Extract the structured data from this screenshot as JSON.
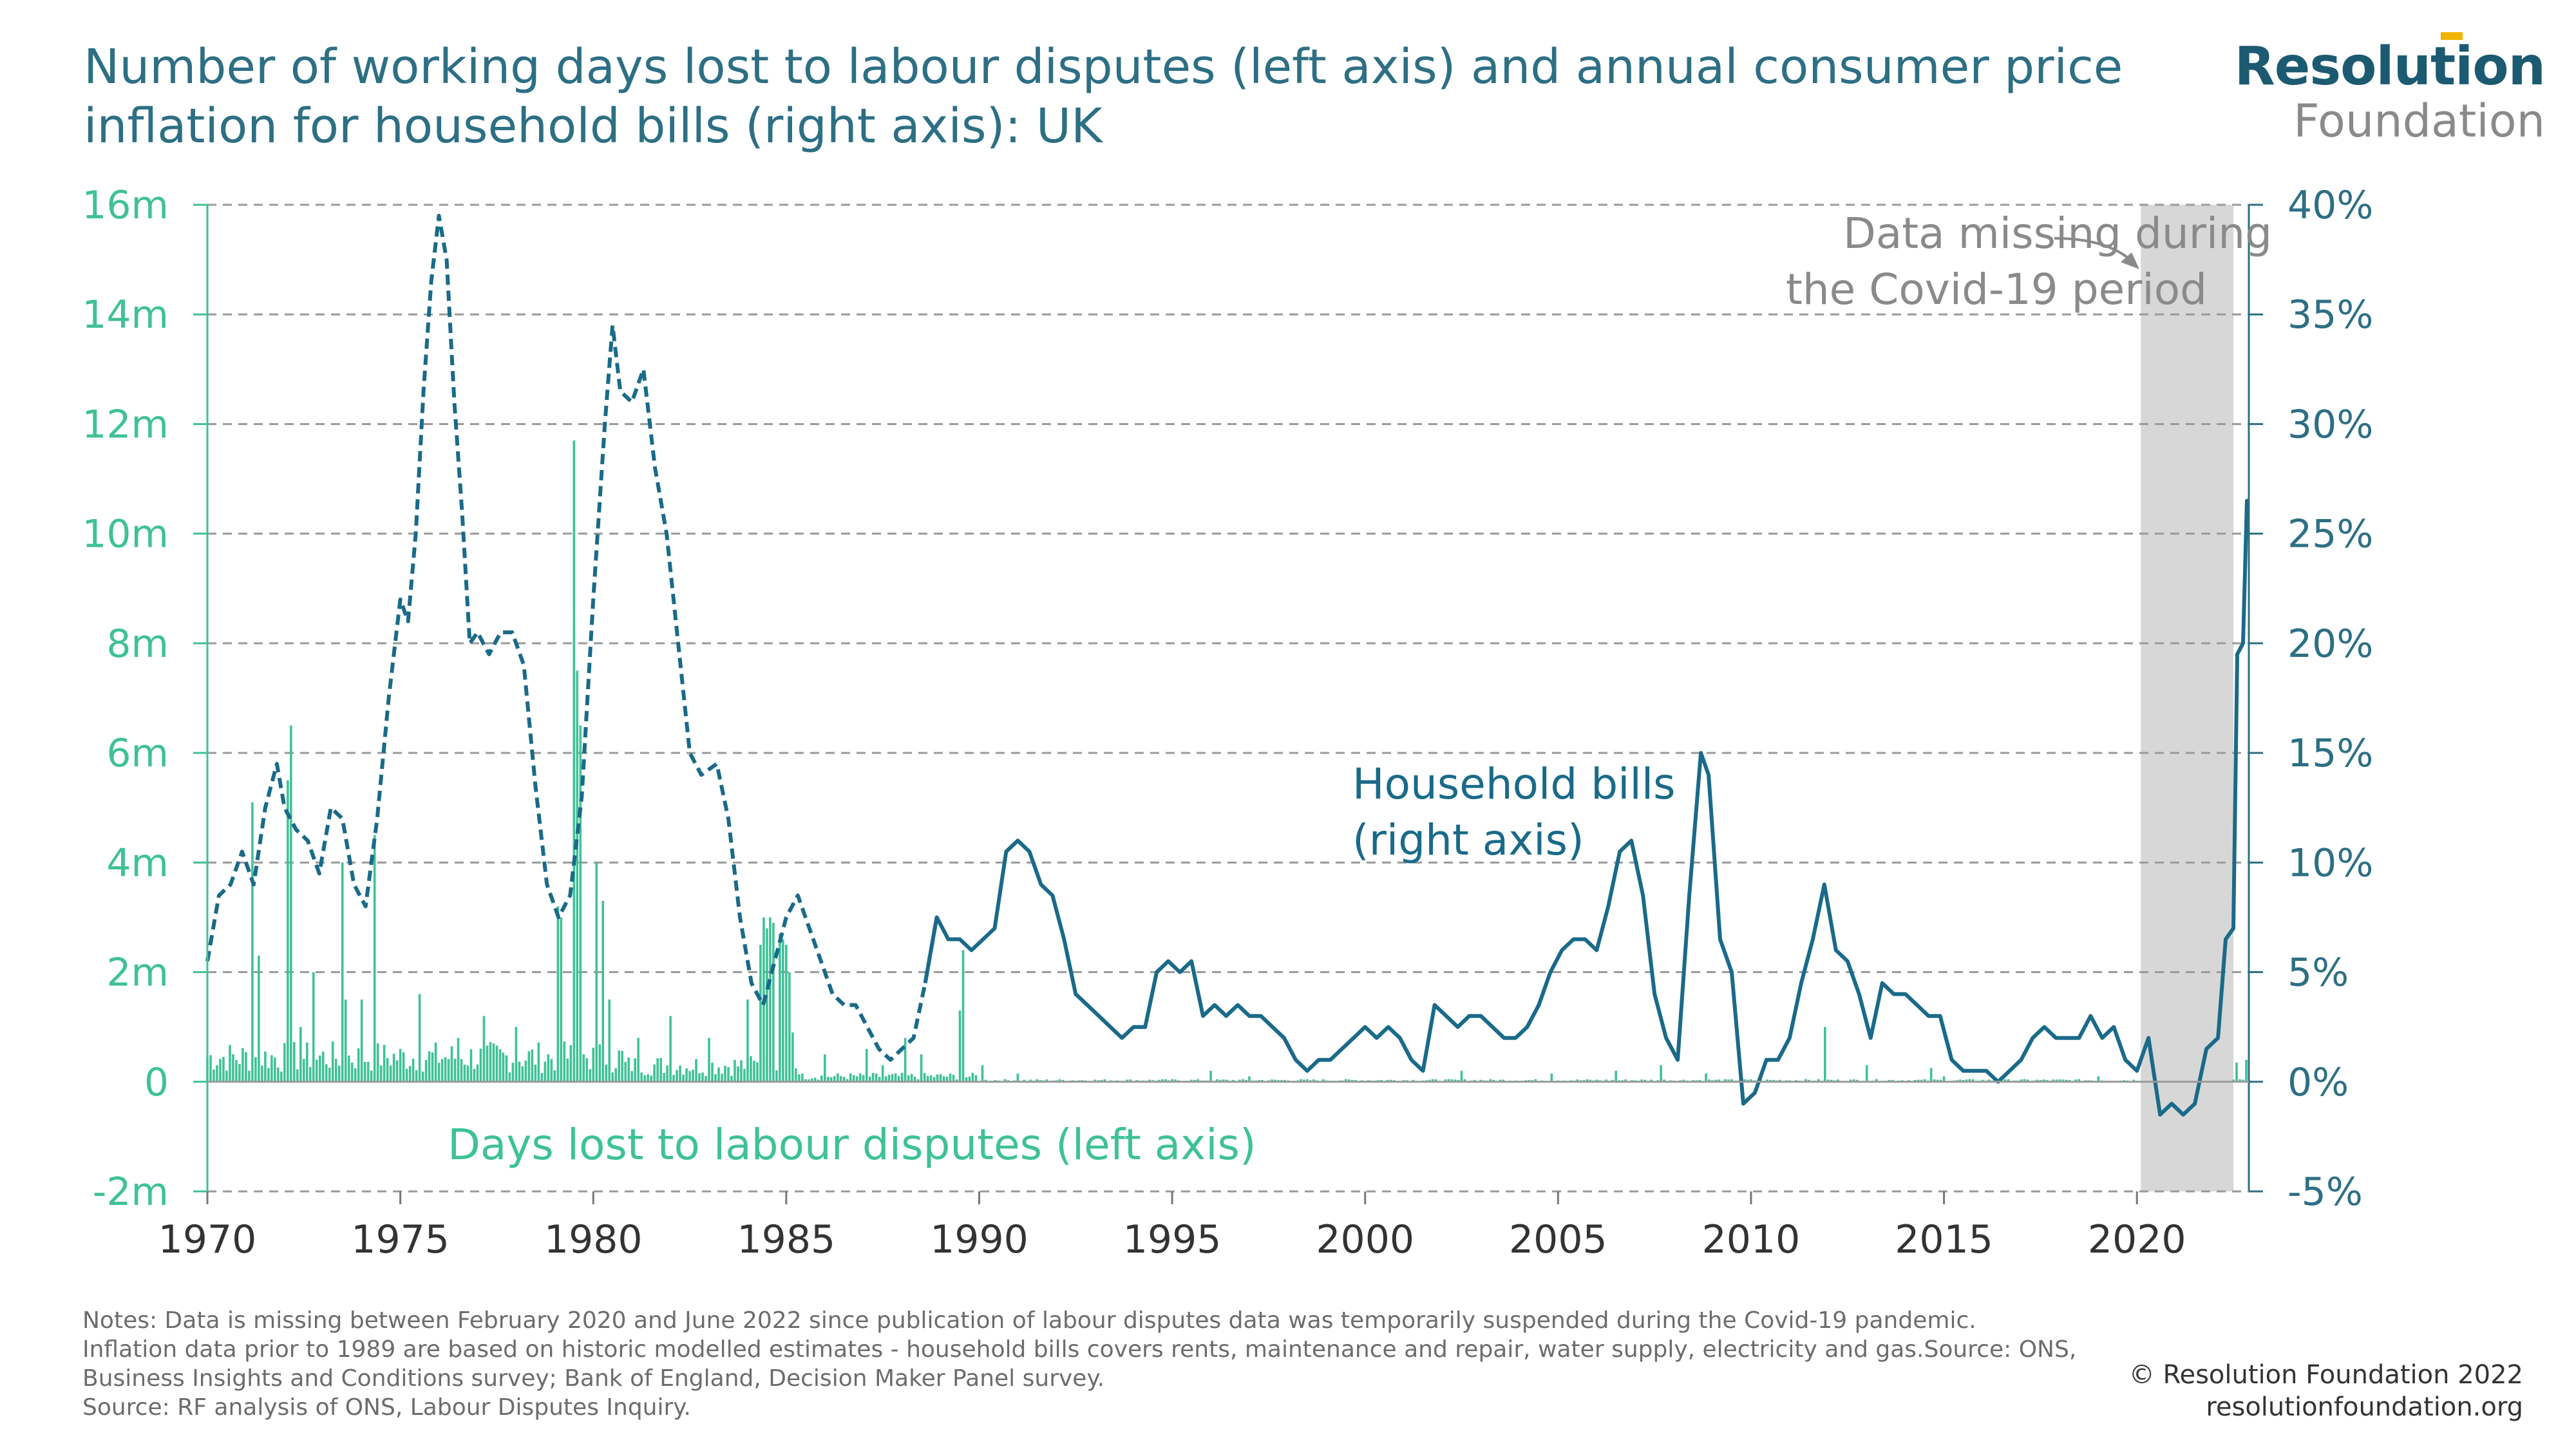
{
  "header": {
    "title": "Number of working days lost to labour disputes (left axis) and annual consumer price inflation for household bills (right axis): UK"
  },
  "logo": {
    "line1": "Resolution",
    "line2": "Foundation",
    "accent_color": "#f0b400"
  },
  "footer": {
    "notes": [
      "Notes: Data is missing between February 2020 and June 2022 since publication of labour disputes data was temporarily suspended during the Covid-19 pandemic.",
      "Inflation data prior to 1989 are based on historic modelled estimates - household bills covers rents, maintenance and repair, water supply, electricity and gas.Source: ONS,",
      "Business Insights and Conditions survey; Bank of England, Decision Maker Panel survey.",
      "Source: RF analysis of ONS, Labour Disputes Inquiry."
    ],
    "copyright": "© Resolution Foundation 2022",
    "website": "resolutionfoundation.org"
  },
  "chart_data": {
    "type": "bar+line",
    "colors": {
      "days_lost": "#3fc197",
      "household_bills": "#1a6a89",
      "covid_band": "#d7d7d7",
      "grid": "#9a9a9a"
    },
    "xlim": [
      1970,
      2022.9
    ],
    "x_ticks": [
      "1970",
      "1975",
      "1980",
      "1985",
      "1990",
      "1995",
      "2000",
      "2005",
      "2010",
      "2015",
      "2020"
    ],
    "y_left": {
      "ylim": [
        -2,
        16
      ],
      "ticks": [
        "-2m",
        "0",
        "2m",
        "4m",
        "6m",
        "8m",
        "10m",
        "12m",
        "14m",
        "16m"
      ]
    },
    "y_right": {
      "ylim": [
        -5,
        40
      ],
      "ticks": [
        "-5%",
        "0%",
        "5%",
        "10%",
        "15%",
        "20%",
        "25%",
        "30%",
        "35%",
        "40%"
      ]
    },
    "grid": "horizontal-dashed",
    "annotations": {
      "covid": {
        "text_line1": "Data missing during",
        "text_line2": "the Covid-19 period",
        "from": 2020.1,
        "to": 2022.5
      },
      "bills_label_line1": "Household bills",
      "bills_label_line2": "(right axis)",
      "days_label": "Days lost to labour disputes (left axis)"
    },
    "series": [
      {
        "name": "Household bills",
        "axis": "right",
        "style": "dashed before 1989, solid after",
        "points": [
          [
            1970.0,
            5.5
          ],
          [
            1970.3,
            8.5
          ],
          [
            1970.6,
            9.0
          ],
          [
            1970.9,
            10.5
          ],
          [
            1971.2,
            9.0
          ],
          [
            1971.5,
            12.5
          ],
          [
            1971.8,
            14.5
          ],
          [
            1972.0,
            12.5
          ],
          [
            1972.3,
            11.5
          ],
          [
            1972.6,
            11.0
          ],
          [
            1972.9,
            9.5
          ],
          [
            1973.2,
            12.5
          ],
          [
            1973.5,
            12.0
          ],
          [
            1973.8,
            9.0
          ],
          [
            1974.1,
            8.0
          ],
          [
            1974.4,
            12.0
          ],
          [
            1974.7,
            17.5
          ],
          [
            1975.0,
            22.0
          ],
          [
            1975.2,
            21.0
          ],
          [
            1975.4,
            25.0
          ],
          [
            1975.6,
            31.5
          ],
          [
            1975.8,
            36.5
          ],
          [
            1976.0,
            39.5
          ],
          [
            1976.2,
            37.5
          ],
          [
            1976.4,
            31.0
          ],
          [
            1976.6,
            26.0
          ],
          [
            1976.8,
            20.0
          ],
          [
            1977.0,
            20.5
          ],
          [
            1977.3,
            19.5
          ],
          [
            1977.6,
            20.5
          ],
          [
            1977.9,
            20.5
          ],
          [
            1978.2,
            19.0
          ],
          [
            1978.5,
            13.5
          ],
          [
            1978.8,
            9.0
          ],
          [
            1979.1,
            7.5
          ],
          [
            1979.4,
            8.5
          ],
          [
            1979.7,
            13.0
          ],
          [
            1980.0,
            22.0
          ],
          [
            1980.3,
            30.0
          ],
          [
            1980.5,
            34.5
          ],
          [
            1980.7,
            31.5
          ],
          [
            1981.0,
            31.0
          ],
          [
            1981.3,
            32.5
          ],
          [
            1981.6,
            28.0
          ],
          [
            1981.9,
            25.0
          ],
          [
            1982.2,
            20.0
          ],
          [
            1982.5,
            15.0
          ],
          [
            1982.8,
            14.0
          ],
          [
            1983.2,
            14.5
          ],
          [
            1983.5,
            12.0
          ],
          [
            1983.8,
            7.5
          ],
          [
            1984.1,
            4.5
          ],
          [
            1984.4,
            3.5
          ],
          [
            1984.7,
            5.5
          ],
          [
            1985.0,
            7.5
          ],
          [
            1985.3,
            8.5
          ],
          [
            1985.6,
            7.0
          ],
          [
            1985.9,
            5.5
          ],
          [
            1986.2,
            4.0
          ],
          [
            1986.5,
            3.5
          ],
          [
            1986.8,
            3.5
          ],
          [
            1987.1,
            2.5
          ],
          [
            1987.4,
            1.5
          ],
          [
            1987.7,
            1.0
          ],
          [
            1988.0,
            1.5
          ],
          [
            1988.3,
            2.0
          ],
          [
            1988.6,
            4.5
          ],
          [
            1988.9,
            7.5
          ],
          [
            1989.2,
            6.5
          ],
          [
            1989.5,
            6.5
          ],
          [
            1989.8,
            6.0
          ],
          [
            1990.1,
            6.5
          ],
          [
            1990.4,
            7.0
          ],
          [
            1990.7,
            10.5
          ],
          [
            1991.0,
            11.0
          ],
          [
            1991.3,
            10.5
          ],
          [
            1991.6,
            9.0
          ],
          [
            1991.9,
            8.5
          ],
          [
            1992.2,
            6.5
          ],
          [
            1992.5,
            4.0
          ],
          [
            1992.8,
            3.5
          ],
          [
            1993.1,
            3.0
          ],
          [
            1993.4,
            2.5
          ],
          [
            1993.7,
            2.0
          ],
          [
            1994.0,
            2.5
          ],
          [
            1994.3,
            2.5
          ],
          [
            1994.6,
            5.0
          ],
          [
            1994.9,
            5.5
          ],
          [
            1995.2,
            5.0
          ],
          [
            1995.5,
            5.5
          ],
          [
            1995.8,
            3.0
          ],
          [
            1996.1,
            3.5
          ],
          [
            1996.4,
            3.0
          ],
          [
            1996.7,
            3.5
          ],
          [
            1997.0,
            3.0
          ],
          [
            1997.3,
            3.0
          ],
          [
            1997.6,
            2.5
          ],
          [
            1997.9,
            2.0
          ],
          [
            1998.2,
            1.0
          ],
          [
            1998.5,
            0.5
          ],
          [
            1998.8,
            1.0
          ],
          [
            1999.1,
            1.0
          ],
          [
            1999.4,
            1.5
          ],
          [
            1999.7,
            2.0
          ],
          [
            2000.0,
            2.5
          ],
          [
            2000.3,
            2.0
          ],
          [
            2000.6,
            2.5
          ],
          [
            2000.9,
            2.0
          ],
          [
            2001.2,
            1.0
          ],
          [
            2001.5,
            0.5
          ],
          [
            2001.8,
            3.5
          ],
          [
            2002.1,
            3.0
          ],
          [
            2002.4,
            2.5
          ],
          [
            2002.7,
            3.0
          ],
          [
            2003.0,
            3.0
          ],
          [
            2003.3,
            2.5
          ],
          [
            2003.6,
            2.0
          ],
          [
            2003.9,
            2.0
          ],
          [
            2004.2,
            2.5
          ],
          [
            2004.5,
            3.5
          ],
          [
            2004.8,
            5.0
          ],
          [
            2005.1,
            6.0
          ],
          [
            2005.4,
            6.5
          ],
          [
            2005.7,
            6.5
          ],
          [
            2006.0,
            6.0
          ],
          [
            2006.3,
            8.0
          ],
          [
            2006.6,
            10.5
          ],
          [
            2006.9,
            11.0
          ],
          [
            2007.2,
            8.5
          ],
          [
            2007.5,
            4.0
          ],
          [
            2007.8,
            2.0
          ],
          [
            2008.1,
            1.0
          ],
          [
            2008.4,
            8.5
          ],
          [
            2008.7,
            15.0
          ],
          [
            2008.9,
            14.0
          ],
          [
            2009.2,
            6.5
          ],
          [
            2009.5,
            5.0
          ],
          [
            2009.8,
            -1.0
          ],
          [
            2010.1,
            -0.5
          ],
          [
            2010.4,
            1.0
          ],
          [
            2010.7,
            1.0
          ],
          [
            2011.0,
            2.0
          ],
          [
            2011.3,
            4.5
          ],
          [
            2011.6,
            6.5
          ],
          [
            2011.9,
            9.0
          ],
          [
            2012.2,
            6.0
          ],
          [
            2012.5,
            5.5
          ],
          [
            2012.8,
            4.0
          ],
          [
            2013.1,
            2.0
          ],
          [
            2013.4,
            4.5
          ],
          [
            2013.7,
            4.0
          ],
          [
            2014.0,
            4.0
          ],
          [
            2014.3,
            3.5
          ],
          [
            2014.6,
            3.0
          ],
          [
            2014.9,
            3.0
          ],
          [
            2015.2,
            1.0
          ],
          [
            2015.5,
            0.5
          ],
          [
            2015.8,
            0.5
          ],
          [
            2016.1,
            0.5
          ],
          [
            2016.4,
            0.0
          ],
          [
            2016.7,
            0.5
          ],
          [
            2017.0,
            1.0
          ],
          [
            2017.3,
            2.0
          ],
          [
            2017.6,
            2.5
          ],
          [
            2017.9,
            2.0
          ],
          [
            2018.2,
            2.0
          ],
          [
            2018.5,
            2.0
          ],
          [
            2018.8,
            3.0
          ],
          [
            2019.1,
            2.0
          ],
          [
            2019.4,
            2.5
          ],
          [
            2019.7,
            1.0
          ],
          [
            2020.0,
            0.5
          ],
          [
            2020.3,
            2.0
          ],
          [
            2020.6,
            -1.5
          ],
          [
            2020.9,
            -1.0
          ],
          [
            2021.2,
            -1.5
          ],
          [
            2021.5,
            -1.0
          ],
          [
            2021.8,
            1.5
          ],
          [
            2022.1,
            2.0
          ],
          [
            2022.3,
            6.5
          ],
          [
            2022.5,
            7.0
          ],
          [
            2022.6,
            19.5
          ],
          [
            2022.75,
            20.0
          ],
          [
            2022.85,
            26.5
          ],
          [
            2022.9,
            26.5
          ]
        ]
      },
      {
        "name": "Days lost to labour disputes",
        "axis": "left",
        "style": "monthly bars",
        "peaks_millions": [
          [
            1971.2,
            5.1
          ],
          [
            1971.35,
            2.3
          ],
          [
            1972.05,
            5.5
          ],
          [
            1972.15,
            6.5
          ],
          [
            1972.4,
            1.0
          ],
          [
            1972.75,
            2.0
          ],
          [
            1973.5,
            4.0
          ],
          [
            1973.6,
            1.5
          ],
          [
            1974.0,
            1.5
          ],
          [
            1974.3,
            4.5
          ],
          [
            1975.5,
            1.6
          ],
          [
            1976.5,
            0.8
          ],
          [
            1977.2,
            1.2
          ],
          [
            1978.0,
            1.0
          ],
          [
            1979.05,
            3.2
          ],
          [
            1979.15,
            3.0
          ],
          [
            1979.5,
            11.7
          ],
          [
            1979.6,
            7.5
          ],
          [
            1979.7,
            6.5
          ],
          [
            1980.1,
            4.0
          ],
          [
            1980.25,
            3.3
          ],
          [
            1980.4,
            1.5
          ],
          [
            1981.2,
            0.8
          ],
          [
            1982.0,
            1.2
          ],
          [
            1983.0,
            0.8
          ],
          [
            1984.0,
            1.5
          ],
          [
            1984.3,
            2.5
          ],
          [
            1984.4,
            3.0
          ],
          [
            1984.5,
            2.8
          ],
          [
            1984.6,
            3.0
          ],
          [
            1984.7,
            2.9
          ],
          [
            1984.8,
            2.7
          ],
          [
            1984.9,
            2.6
          ],
          [
            1985.0,
            2.5
          ],
          [
            1985.1,
            2.0
          ],
          [
            1985.2,
            0.9
          ],
          [
            1986.0,
            0.5
          ],
          [
            1987.1,
            0.6
          ],
          [
            1987.5,
            0.3
          ],
          [
            1988.1,
            0.8
          ],
          [
            1988.5,
            0.5
          ],
          [
            1989.5,
            1.3
          ],
          [
            1989.55,
            2.4
          ],
          [
            1990.1,
            0.3
          ],
          [
            1991.0,
            0.15
          ],
          [
            1996.0,
            0.2
          ],
          [
            1997.0,
            0.1
          ],
          [
            2002.5,
            0.2
          ],
          [
            2004.8,
            0.15
          ],
          [
            2006.5,
            0.2
          ],
          [
            2007.7,
            0.3
          ],
          [
            2008.8,
            0.15
          ],
          [
            2011.9,
            1.0
          ],
          [
            2013.0,
            0.3
          ],
          [
            2014.7,
            0.25
          ],
          [
            2015.0,
            0.1
          ],
          [
            2019.0,
            0.1
          ],
          [
            2022.6,
            0.35
          ],
          [
            2022.8,
            0.4
          ]
        ]
      }
    ]
  }
}
